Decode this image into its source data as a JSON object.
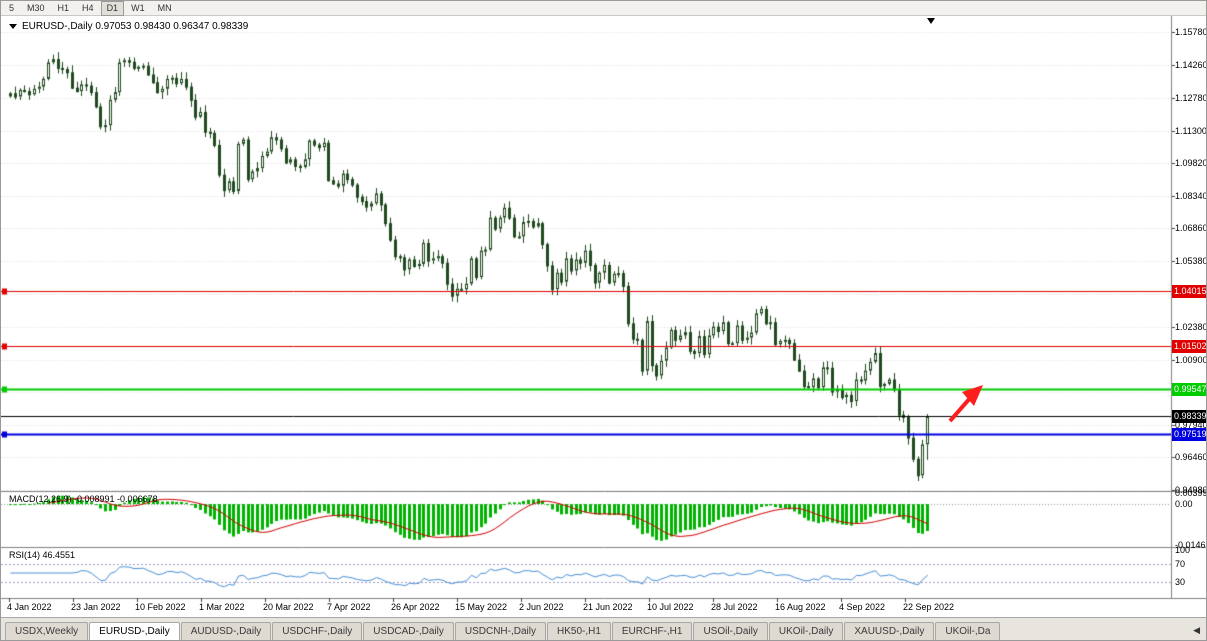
{
  "toolbar": {
    "timeframes": [
      {
        "label": "5",
        "active": false
      },
      {
        "label": "M30",
        "active": false
      },
      {
        "label": "H1",
        "active": false
      },
      {
        "label": "H4",
        "active": false
      },
      {
        "label": "D1",
        "active": true
      },
      {
        "label": "W1",
        "active": false
      },
      {
        "label": "MN",
        "active": false
      }
    ]
  },
  "chart": {
    "title": "EURUSD-,Daily  0.97053 0.98430 0.96347 0.98339",
    "symbol": "EURUSD-,Daily",
    "ohlc": {
      "open": "0.97053",
      "high": "0.98430",
      "low": "0.96347",
      "close": "0.98339"
    }
  },
  "icons": {
    "tab_scroll_left": "◀"
  },
  "chart_data": {
    "type": "candlestick",
    "title": "EURUSD-,Daily",
    "y_ticks": [
      "1.15780",
      "1.14260",
      "1.12780",
      "1.11300",
      "1.09820",
      "1.08340",
      "1.06860",
      "1.05380",
      "1.03900",
      "1.02380",
      "1.00900",
      "0.99420",
      "0.97940",
      "0.96460",
      "0.94980"
    ],
    "y_range": [
      0.9494,
      1.1656
    ],
    "x_labels": [
      "4 Jan 2022",
      "23 Jan 2022",
      "10 Feb 2022",
      "1 Mar 2022",
      "20 Mar 2022",
      "7 Apr 2022",
      "26 Apr 2022",
      "15 May 2022",
      "2 Jun 2022",
      "21 Jun 2022",
      "10 Jul 2022",
      "28 Jul 2022",
      "16 Aug 2022",
      "4 Sep 2022",
      "22 Sep 2022"
    ],
    "closes": [
      1.13,
      1.1285,
      1.1315,
      1.131,
      1.1295,
      1.132,
      1.133,
      1.1365,
      1.144,
      1.1455,
      1.1415,
      1.141,
      1.1395,
      1.1325,
      1.131,
      1.134,
      1.1335,
      1.1305,
      1.124,
      1.115,
      1.1155,
      1.127,
      1.1305,
      1.144,
      1.145,
      1.1443,
      1.1415,
      1.142,
      1.1425,
      1.1385,
      1.135,
      1.1305,
      1.132,
      1.1365,
      1.137,
      1.1345,
      1.1365,
      1.133,
      1.127,
      1.1193,
      1.1215,
      1.1125,
      1.112,
      1.1065,
      1.093,
      1.086,
      1.09,
      1.0856,
      1.107,
      1.109,
      1.091,
      1.0945,
      1.096,
      1.1015,
      1.1035,
      1.11,
      1.109,
      1.105,
      1.0985,
      1.1,
      1.097,
      1.0965,
      1.1,
      1.1085,
      1.1067,
      1.1055,
      1.1075,
      1.0905,
      1.089,
      1.088,
      1.0935,
      1.091,
      1.0885,
      1.083,
      1.081,
      1.0785,
      1.08,
      1.0845,
      1.0795,
      1.071,
      1.0635,
      1.056,
      1.0555,
      1.05,
      1.0545,
      1.0515,
      1.0525,
      1.062,
      1.054,
      1.055,
      1.056,
      1.053,
      1.0435,
      1.038,
      1.0412,
      1.041,
      1.0435,
      1.055,
      1.0465,
      1.0585,
      1.059,
      1.0735,
      1.0685,
      1.0735,
      1.078,
      1.0735,
      1.065,
      1.065,
      1.0715,
      1.072,
      1.0695,
      1.071,
      1.0615,
      1.0518,
      1.041,
      1.0485,
      1.0444,
      1.055,
      1.0495,
      1.0545,
      1.053,
      1.0585,
      1.052,
      1.044,
      1.0485,
      1.052,
      1.044,
      1.048,
      1.0483,
      1.0425,
      1.0255,
      1.0185,
      1.018,
      1.004,
      1.0265,
      1.0065,
      1.0018,
      1.0085,
      1.0145,
      1.0225,
      1.018,
      1.02,
      1.0215,
      1.013,
      1.012,
      1.0197,
      1.0115,
      1.02,
      1.024,
      1.022,
      1.026,
      1.0165,
      1.0165,
      1.0245,
      1.018,
      1.019,
      1.0213,
      1.03,
      1.032,
      1.0255,
      1.026,
      1.016,
      1.0175,
      1.018,
      1.0165,
      1.009,
      1.004,
      0.997,
      0.9965,
      1.0005,
      0.9965,
      1.0055,
      1.0053,
      0.9945,
      0.9955,
      0.992,
      0.993,
      0.9902,
      1.0,
      0.9995,
      1.004,
      1.008,
      1.012,
      0.997,
      0.998,
      1.0,
      0.9955,
      0.984,
      0.983,
      0.9736,
      0.964,
      0.9565,
      0.9705,
      0.98339
    ],
    "last_candle": {
      "open": 0.97053,
      "high": 0.9843,
      "low": 0.96347,
      "close": 0.98339
    },
    "hlines": [
      {
        "price": 1.04015,
        "label": "1.04015",
        "color": "#e00000",
        "width": 1,
        "left_marker": true
      },
      {
        "price": 1.01502,
        "label": "1.01502",
        "color": "#e00000",
        "width": 1,
        "left_marker": true
      },
      {
        "price": 0.99547,
        "label": "0.99547",
        "color": "#00cc00",
        "width": 2,
        "left_marker": true
      },
      {
        "price": 0.98339,
        "label": "0.98339",
        "color": "#000000",
        "width": 1,
        "left_marker": false
      },
      {
        "price": 0.97519,
        "label": "0.97519",
        "color": "#0000e0",
        "width": 2,
        "left_marker": true
      }
    ],
    "annotations": [
      {
        "type": "up-right-arrow",
        "color": "#ff1e1e"
      }
    ],
    "indicators": [
      {
        "name": "MACD",
        "label": "MACD(12,26,9) -0.008991 -0.006678",
        "params": [
          12,
          26,
          9
        ],
        "y_ticks": [
          "0.00399",
          "0.00",
          "-0.01469"
        ],
        "y_range": [
          -0.01469,
          0.00399
        ],
        "colors": {
          "histogram": "#00b300",
          "signal": "#d00000"
        }
      },
      {
        "name": "RSI",
        "label": "RSI(14) 46.4551",
        "params": [
          14
        ],
        "value": 46.4551,
        "y_ticks": [
          "100",
          "70",
          "30"
        ],
        "levels": [
          70,
          30
        ],
        "y_range": [
          0,
          100
        ],
        "color": "#4a8fd4"
      }
    ]
  },
  "tabs": {
    "items": [
      "USDX,Weekly",
      "EURUSD-,Daily",
      "AUDUSD-,Daily",
      "USDCHF-,Daily",
      "USDCAD-,Daily",
      "USDCNH-,Daily",
      "HK50-,H1",
      "EURCHF-,H1",
      "USOil-,Daily",
      "UKOil-,Daily",
      "XAUUSD-,Daily",
      "UKOil-,Da"
    ],
    "active_index": 1
  }
}
